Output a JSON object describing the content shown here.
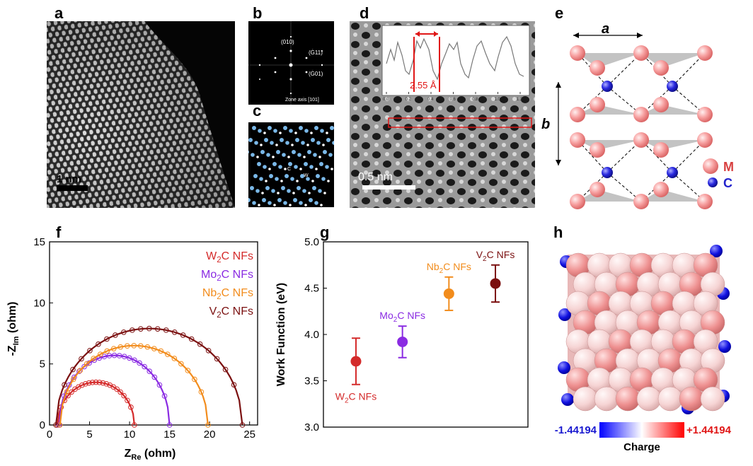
{
  "panel_labels": {
    "a": "a",
    "b": "b",
    "c": "c",
    "d": "d",
    "e": "e",
    "f": "f",
    "g": "g",
    "h": "h"
  },
  "panel_a": {
    "scalebar": "1 nm"
  },
  "panel_b": {
    "spots": [
      "(010)",
      "(Ġ11)",
      "(Ġ01)"
    ],
    "zone_axis": "Zone axis [101]"
  },
  "panel_c": {
    "atom_c": "C",
    "atom_w": "W"
  },
  "panel_d": {
    "scalebar": "0.5 nm",
    "spacing": "2.55 Å",
    "inset_ticks": [
      "0.0",
      "0.2",
      "0.4",
      "0.6",
      "0.8",
      "1.0",
      "1.2"
    ]
  },
  "panel_e": {
    "lattice_a": "a",
    "lattice_b": "b",
    "legend_m": "M",
    "legend_c": "C",
    "colors": {
      "M": "#f08c8c",
      "C": "#2222cc"
    }
  },
  "panel_h": {
    "scale_min": "-1.44194",
    "scale_max": "+1.44194",
    "scale_label": "Charge",
    "colors": {
      "neg": "#0000ff",
      "mid": "#ffffff",
      "pos": "#ff0000"
    }
  },
  "chart_data": [
    {
      "type": "line",
      "panel": "f",
      "xlabel_main": "Z",
      "xlabel_sub": "Re",
      "xlabel_unit": " (ohm)",
      "ylabel_main": "-Z",
      "ylabel_sub": "Im",
      "ylabel_unit": " (ohm)",
      "xlim": [
        0,
        26
      ],
      "ylim": [
        0,
        15
      ],
      "xticks": [
        0,
        5,
        10,
        15,
        20,
        25
      ],
      "yticks": [
        0,
        5,
        10,
        15
      ],
      "legend_position": "top-right",
      "series": [
        {
          "name": "W2C NFs",
          "pre": "W",
          "sub": "2",
          "post": "C NFs",
          "color": "#d42a2a",
          "x0": 1.0,
          "x1": 10.6,
          "peak": 3.5
        },
        {
          "name": "Mo2C NFs",
          "pre": "Mo",
          "sub": "2",
          "post": "C NFs",
          "color": "#8a2be2",
          "x0": 1.2,
          "x1": 15.0,
          "peak": 5.7
        },
        {
          "name": "Nb2C NFs",
          "pre": "Nb",
          "sub": "2",
          "post": "C NFs",
          "color": "#f28c1c",
          "x0": 1.3,
          "x1": 19.8,
          "peak": 6.5
        },
        {
          "name": "V2C NFs",
          "pre": "V",
          "sub": "2",
          "post": "C NFs",
          "color": "#7b1010",
          "x0": 0.8,
          "x1": 24.1,
          "peak": 7.9
        }
      ]
    },
    {
      "type": "scatter",
      "panel": "g",
      "ylabel": "Work Function (eV)",
      "ylim": [
        3.0,
        5.0
      ],
      "yticks": [
        "3.0",
        "3.5",
        "4.0",
        "4.5",
        "5.0"
      ],
      "grid": false,
      "points": [
        {
          "name": "W2C NFs",
          "pre": "W",
          "sub": "2",
          "post": "C NFs",
          "value": 3.71,
          "err": 0.25,
          "color": "#d42a2a",
          "label_pos": "below"
        },
        {
          "name": "Mo2C NFs",
          "pre": "Mo",
          "sub": "2",
          "post": "C NFs",
          "value": 3.92,
          "err": 0.17,
          "color": "#8a2be2",
          "label_pos": "above"
        },
        {
          "name": "Nb2C NFs",
          "pre": "Nb",
          "sub": "2",
          "post": "C NFs",
          "value": 4.44,
          "err": 0.18,
          "color": "#f28c1c",
          "label_pos": "above"
        },
        {
          "name": "V2C NFs",
          "pre": "V",
          "sub": "2",
          "post": "C NFs",
          "value": 4.55,
          "err": 0.2,
          "color": "#7b1010",
          "label_pos": "above"
        }
      ]
    }
  ]
}
